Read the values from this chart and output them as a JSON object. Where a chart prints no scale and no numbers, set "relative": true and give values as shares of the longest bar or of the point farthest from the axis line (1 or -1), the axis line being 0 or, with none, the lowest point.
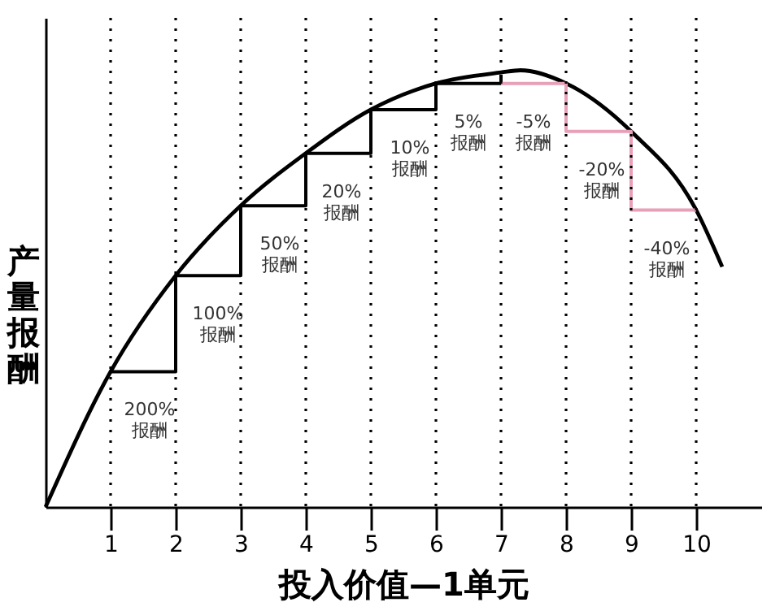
{
  "chart_data": {
    "type": "line",
    "relative": true,
    "xlabel": "投入价值—1单元",
    "ylabel": "产量报酬",
    "xlim": [
      0,
      11
    ],
    "xticks": [
      1,
      2,
      3,
      4,
      5,
      6,
      7,
      8,
      9,
      10
    ],
    "grid": false,
    "marker": "none",
    "series": [
      {
        "color": "#000000",
        "x": [
          0,
          1,
          2,
          3,
          4,
          5,
          6,
          7,
          7.3,
          8,
          9,
          10,
          10.4
        ],
        "values": [
          0,
          0.31,
          0.53,
          0.69,
          0.81,
          0.91,
          0.97,
          0.995,
          1.0,
          0.97,
          0.86,
          0.68,
          0.55
        ]
      },
      {
        "type": "step",
        "color": "#000000",
        "x": [
          1,
          2,
          3,
          4,
          5,
          6,
          7
        ],
        "values": [
          0.31,
          0.53,
          0.69,
          0.81,
          0.91,
          0.97,
          0.99
        ]
      },
      {
        "type": "step",
        "color": "#e8a0b8",
        "x": [
          7,
          8,
          9,
          10
        ],
        "values": [
          0.97,
          0.86,
          0.68,
          0.68
        ]
      }
    ],
    "ref_lines": [
      {
        "axis": "x",
        "value": 1,
        "line_style": "dotted"
      },
      {
        "axis": "x",
        "value": 2,
        "line_style": "dotted"
      },
      {
        "axis": "x",
        "value": 3,
        "line_style": "dotted"
      },
      {
        "axis": "x",
        "value": 4,
        "line_style": "dotted"
      },
      {
        "axis": "x",
        "value": 5,
        "line_style": "dotted"
      },
      {
        "axis": "x",
        "value": 6,
        "line_style": "dotted"
      },
      {
        "axis": "x",
        "value": 7,
        "line_style": "dotted"
      },
      {
        "axis": "x",
        "value": 8,
        "line_style": "dotted"
      },
      {
        "axis": "x",
        "value": 9,
        "line_style": "dotted"
      },
      {
        "axis": "x",
        "value": 10,
        "line_style": "dotted"
      }
    ],
    "annotations": [
      {
        "text": "200% 报酬",
        "x": 1.6,
        "y": 0.31
      },
      {
        "text": "100% 报酬",
        "x": 2.65,
        "y": 0.53
      },
      {
        "text": "50% 报酬",
        "x": 3.6,
        "y": 0.69
      },
      {
        "text": "20% 报酬",
        "x": 4.55,
        "y": 0.81
      },
      {
        "text": "10% 报酬",
        "x": 5.6,
        "y": 0.91
      },
      {
        "text": "5% 报酬",
        "x": 6.5,
        "y": 0.97
      },
      {
        "text": "-5% 报酬",
        "x": 7.5,
        "y": 0.97
      },
      {
        "text": "-20% 报酬",
        "x": 8.55,
        "y": 0.86
      },
      {
        "text": "-40% 报酬",
        "x": 9.55,
        "y": 0.68
      }
    ]
  }
}
